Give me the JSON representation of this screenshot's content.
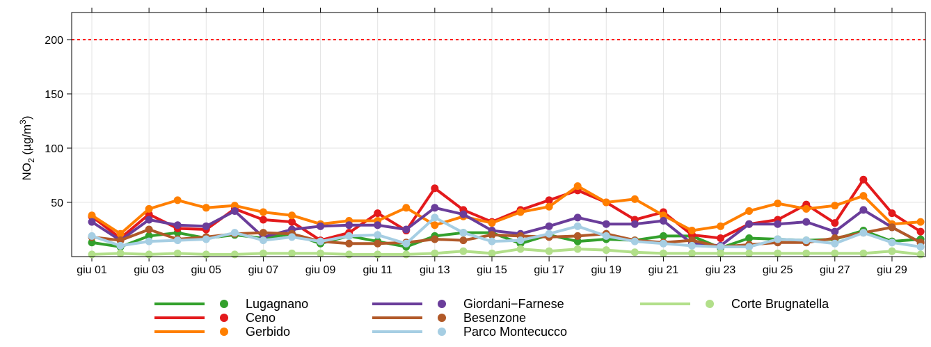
{
  "chart_data": {
    "type": "line",
    "y_label_parts": [
      "NO",
      "2",
      " (µg/m",
      "3",
      ")"
    ],
    "categories": [
      "giu 01",
      null,
      "giu 03",
      null,
      "giu 05",
      null,
      "giu 07",
      null,
      "giu 09",
      null,
      "giu 11",
      null,
      "giu 13",
      null,
      "giu 15",
      null,
      "giu 17",
      null,
      "giu 19",
      null,
      "giu 21",
      null,
      "giu 23",
      null,
      "giu 25",
      null,
      "giu 27",
      null,
      "giu 29",
      null
    ],
    "ylim": [
      0,
      225
    ],
    "yticks": [
      50,
      100,
      150,
      200
    ],
    "grid": true,
    "hline": {
      "value": 200,
      "color": "#ff0000"
    },
    "series": [
      {
        "name": "Lugagnano",
        "color": "#33a02c",
        "values": [
          13,
          9,
          19,
          22,
          17,
          20,
          17,
          21,
          12,
          19,
          14,
          9,
          19,
          22,
          22,
          12,
          20,
          14,
          16,
          15,
          19,
          19,
          8,
          17,
          16,
          15,
          16,
          24,
          14,
          16
        ]
      },
      {
        "name": "Ceno",
        "color": "#e31a1c",
        "values": [
          37,
          17,
          39,
          26,
          25,
          44,
          34,
          32,
          15,
          22,
          40,
          24,
          63,
          43,
          32,
          43,
          52,
          61,
          50,
          34,
          41,
          20,
          17,
          30,
          34,
          48,
          31,
          71,
          40,
          23
        ]
      },
      {
        "name": "Gerbido",
        "color": "#ff7f00",
        "values": [
          38,
          21,
          44,
          52,
          45,
          47,
          41,
          38,
          30,
          33,
          33,
          45,
          29,
          37,
          31,
          41,
          46,
          65,
          50,
          53,
          38,
          24,
          28,
          42,
          49,
          44,
          47,
          56,
          30,
          32
        ]
      },
      {
        "name": "Giordani−Farnese",
        "color": "#6a3d9a",
        "values": [
          32,
          15,
          34,
          29,
          28,
          42,
          18,
          25,
          28,
          29,
          29,
          25,
          45,
          39,
          24,
          21,
          28,
          36,
          30,
          30,
          33,
          12,
          10,
          30,
          30,
          32,
          23,
          43,
          27,
          13
        ]
      },
      {
        "name": "Besenzone",
        "color": "#b15928",
        "values": [
          18,
          15,
          25,
          16,
          18,
          21,
          22,
          21,
          14,
          12,
          12,
          13,
          16,
          15,
          20,
          19,
          18,
          19,
          21,
          15,
          13,
          15,
          9,
          11,
          13,
          13,
          17,
          22,
          27,
          13
        ]
      },
      {
        "name": "Parco Montecucco",
        "color": "#a6cee3",
        "values": [
          19,
          10,
          14,
          15,
          16,
          22,
          15,
          18,
          14,
          19,
          20,
          12,
          36,
          22,
          14,
          15,
          21,
          28,
          19,
          14,
          12,
          10,
          9,
          9,
          16,
          15,
          12,
          22,
          13,
          9
        ]
      },
      {
        "name": "Corte Brugnatella",
        "color": "#b2df8a",
        "values": [
          2,
          3,
          2,
          3,
          2,
          2,
          3,
          3,
          3,
          2,
          2,
          2,
          3,
          5,
          3,
          7,
          5,
          7,
          6,
          4,
          3,
          3,
          3,
          3,
          3,
          3,
          3,
          3,
          5,
          2
        ]
      }
    ]
  }
}
